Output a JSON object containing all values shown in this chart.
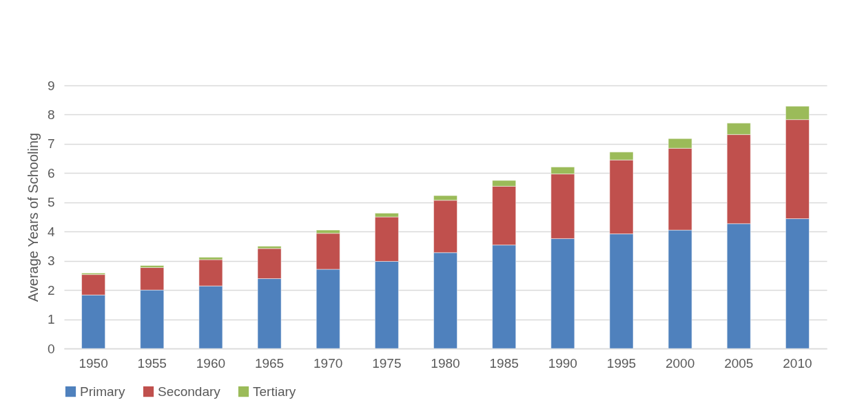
{
  "chart_data": {
    "type": "bar",
    "stacked": true,
    "ylabel": "Average Years of Schooling",
    "categories": [
      "1950",
      "1955",
      "1960",
      "1965",
      "1970",
      "1975",
      "1980",
      "1985",
      "1990",
      "1995",
      "2000",
      "2005",
      "2010"
    ],
    "series": [
      {
        "name": "Primary",
        "color": "#4f81bd",
        "values": [
          1.83,
          2.0,
          2.14,
          2.39,
          2.71,
          2.98,
          3.28,
          3.54,
          3.76,
          3.92,
          4.05,
          4.27,
          4.44
        ]
      },
      {
        "name": "Secondary",
        "color": "#c0504d",
        "values": [
          0.7,
          0.77,
          0.9,
          1.03,
          1.23,
          1.52,
          1.79,
          2.01,
          2.21,
          2.53,
          2.8,
          3.05,
          3.39
        ]
      },
      {
        "name": "Tertiary",
        "color": "#9bbb59",
        "values": [
          0.05,
          0.07,
          0.08,
          0.08,
          0.11,
          0.13,
          0.16,
          0.2,
          0.24,
          0.27,
          0.33,
          0.39,
          0.46
        ]
      }
    ],
    "ylim": [
      0,
      9
    ],
    "yticks": [
      0,
      1,
      2,
      3,
      4,
      5,
      6,
      7,
      8,
      9
    ],
    "grid": "y",
    "legend": "bottom"
  }
}
